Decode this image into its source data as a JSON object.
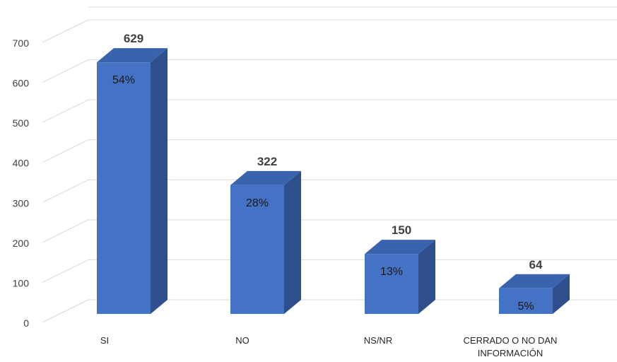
{
  "chart_data": {
    "type": "bar",
    "categories": [
      "SI",
      "NO",
      "NS/NR",
      "CERRADO O NO DAN INFORMACIÓN"
    ],
    "category_lines": [
      [
        "SI"
      ],
      [
        "NO"
      ],
      [
        "NS/NR"
      ],
      [
        "CERRADO O NO DAN",
        "INFORMACIÓN"
      ]
    ],
    "values": [
      629,
      322,
      150,
      64
    ],
    "percent_labels": [
      "54%",
      "28%",
      "13%",
      "5%"
    ],
    "yticks": [
      0,
      100,
      200,
      300,
      400,
      500,
      600,
      700
    ],
    "ylim": [
      0,
      700
    ],
    "grid": true,
    "legend": "none",
    "style": "3d-column",
    "colors": {
      "bar_front": "#4472C4",
      "bar_side": "#2F4E8C",
      "bar_top": "#3A63AE",
      "grid": "#D9D9D9"
    }
  }
}
